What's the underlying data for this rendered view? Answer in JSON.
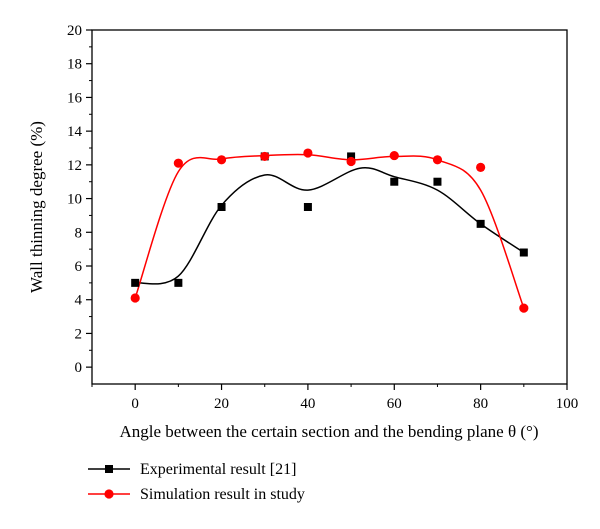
{
  "chart_data": {
    "type": "scatter",
    "xlabel": "Angle between the certain section and the bending plane θ (°)",
    "ylabel": "Wall thinning degree (%)",
    "xlim": [
      -10,
      100
    ],
    "ylim": [
      -1,
      20
    ],
    "x_ticks": [
      0,
      20,
      40,
      60,
      80,
      100
    ],
    "y_ticks": [
      0,
      2,
      4,
      6,
      8,
      10,
      12,
      14,
      16,
      18,
      20
    ],
    "grid": false,
    "legend_position": "bottom-left, below plot",
    "series": [
      {
        "name": "Experimental result [21]",
        "marker": "square",
        "color": "#000000",
        "smooth_line": true,
        "x": [
          0,
          10,
          20,
          30,
          40,
          50,
          60,
          70,
          80,
          90
        ],
        "y": [
          5.0,
          5.0,
          9.5,
          12.5,
          9.5,
          12.5,
          11.0,
          11.0,
          8.5,
          6.8
        ],
        "curve_x": [
          0,
          10,
          20,
          30,
          40,
          52,
          60,
          70,
          80,
          90
        ],
        "curve_y": [
          5.0,
          5.4,
          9.6,
          11.4,
          10.5,
          11.8,
          11.3,
          10.5,
          8.5,
          6.8
        ]
      },
      {
        "name": "Simulation result in study",
        "marker": "circle",
        "color": "#ff0000",
        "smooth_line": true,
        "x": [
          0,
          10,
          20,
          30,
          40,
          50,
          60,
          70,
          80,
          90
        ],
        "y": [
          4.1,
          12.1,
          12.3,
          12.5,
          12.7,
          12.2,
          12.55,
          12.3,
          11.85,
          3.5
        ],
        "curve_x": [
          0,
          10,
          20,
          30,
          40,
          50,
          60,
          70,
          80,
          90
        ],
        "curve_y": [
          4.1,
          11.6,
          12.35,
          12.55,
          12.6,
          12.3,
          12.5,
          12.3,
          10.5,
          3.5
        ]
      }
    ]
  }
}
